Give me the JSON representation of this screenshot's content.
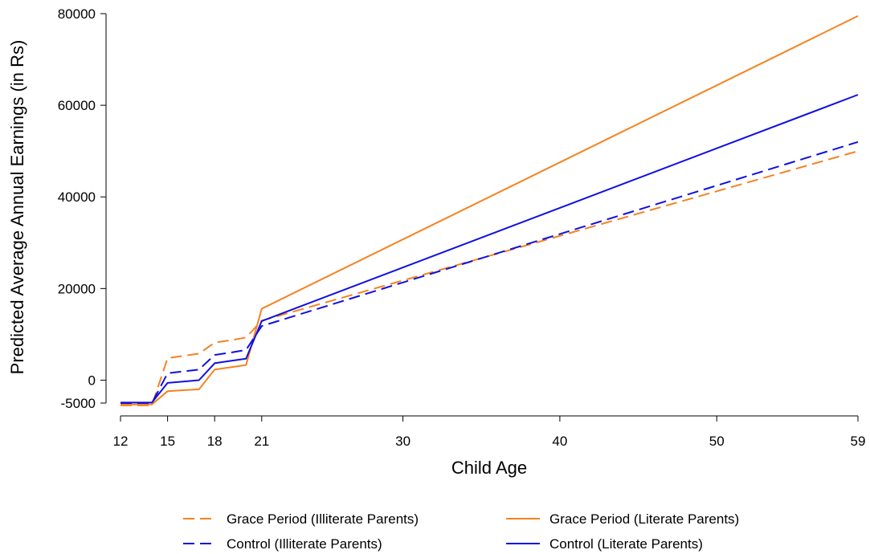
{
  "chart_data": {
    "type": "line",
    "title": "",
    "xlabel": "Child Age",
    "ylabel": "Predicted Average Annual Earnings (in Rs)",
    "xlim": [
      12,
      59
    ],
    "ylim": [
      -5000,
      80000
    ],
    "x_ticks": [
      12,
      15,
      18,
      21,
      30,
      40,
      50,
      59
    ],
    "x_tick_labels": [
      "12",
      "15",
      "18",
      "21",
      "30",
      "40",
      "50",
      "59"
    ],
    "y_ticks": [
      -5000,
      0,
      20000,
      40000,
      60000,
      80000
    ],
    "y_tick_labels": [
      "-5000",
      "0",
      "20000",
      "40000",
      "60000",
      "80000"
    ],
    "grid": false,
    "legend_position": "bottom",
    "series": [
      {
        "name": "Grace Period (Illiterate Parents)",
        "color": "#f5821f",
        "dash": "dashed",
        "x": [
          12,
          13,
          14,
          15,
          16,
          17,
          18,
          19,
          20,
          21,
          59
        ],
        "y": [
          -5500,
          -5500,
          -5500,
          4800,
          5300,
          5800,
          8200,
          8700,
          9300,
          13000,
          50000
        ]
      },
      {
        "name": "Grace Period (Literate Parents)",
        "color": "#f5821f",
        "dash": "solid",
        "x": [
          12,
          13,
          14,
          15,
          16,
          17,
          18,
          19,
          20,
          21,
          59
        ],
        "y": [
          -5300,
          -5300,
          -5300,
          -2400,
          -2200,
          -2000,
          2300,
          2800,
          3300,
          15600,
          79500
        ]
      },
      {
        "name": "Control (Illiterate Parents)",
        "color": "#1010e0",
        "dash": "dashed",
        "x": [
          12,
          13,
          14,
          15,
          16,
          17,
          18,
          19,
          20,
          21,
          59
        ],
        "y": [
          -5000,
          -5000,
          -5000,
          1500,
          1900,
          2300,
          5500,
          6000,
          6600,
          11800,
          52000
        ]
      },
      {
        "name": "Control (Literate Parents)",
        "color": "#1010e0",
        "dash": "solid",
        "x": [
          12,
          13,
          14,
          15,
          16,
          17,
          18,
          19,
          20,
          21,
          59
        ],
        "y": [
          -4900,
          -4900,
          -4900,
          -600,
          -300,
          0,
          3700,
          4200,
          4700,
          12900,
          62300
        ]
      }
    ]
  }
}
